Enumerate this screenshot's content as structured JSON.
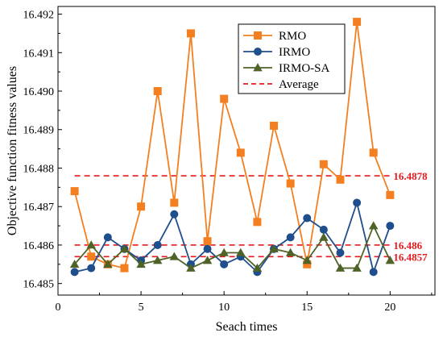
{
  "chart_data": {
    "type": "line",
    "title": "",
    "xlabel": "Seach times",
    "ylabel": "Objective function fitness values",
    "xlim": [
      0,
      22.7
    ],
    "ylim": [
      16.4847,
      16.4922
    ],
    "x_ticks": [
      0,
      5,
      10,
      15,
      20
    ],
    "y_ticks": [
      16.485,
      16.486,
      16.487,
      16.488,
      16.489,
      16.49,
      16.491,
      16.492
    ],
    "grid": false,
    "legend_position": "top-right",
    "x": [
      1,
      2,
      3,
      4,
      5,
      6,
      7,
      8,
      9,
      10,
      11,
      12,
      13,
      14,
      15,
      16,
      17,
      18,
      19,
      20
    ],
    "series": [
      {
        "name": "RMO",
        "color": "#F47F20",
        "marker": "square",
        "values": [
          16.4874,
          16.4857,
          16.4855,
          16.4854,
          16.487,
          16.49,
          16.4871,
          16.4915,
          16.4861,
          16.4898,
          16.4884,
          16.4866,
          16.4891,
          16.4876,
          16.4855,
          16.4881,
          16.4877,
          16.4918,
          16.4884,
          16.4873
        ]
      },
      {
        "name": "IRMO",
        "color": "#1F4E8C",
        "marker": "circle",
        "values": [
          16.4853,
          16.4854,
          16.4862,
          16.4859,
          16.4856,
          16.486,
          16.4868,
          16.4855,
          16.4859,
          16.4855,
          16.4857,
          16.4853,
          16.4859,
          16.4862,
          16.4867,
          16.4864,
          16.4858,
          16.4871,
          16.4853,
          16.4865
        ]
      },
      {
        "name": "IRMO-SA",
        "color": "#4F6228",
        "marker": "triangle",
        "values": [
          16.4855,
          16.486,
          16.4855,
          16.4859,
          16.4855,
          16.4856,
          16.4857,
          16.4854,
          16.4856,
          16.4858,
          16.4858,
          16.4854,
          16.4859,
          16.4858,
          16.4856,
          16.4862,
          16.4854,
          16.4854,
          16.4865,
          16.4856
        ]
      }
    ],
    "average": {
      "name": "Average",
      "color": "#E41A1C",
      "x_range": [
        1,
        20
      ],
      "lines": [
        {
          "value": 16.4878,
          "label": "16.4878"
        },
        {
          "value": 16.486,
          "label": "16.486"
        },
        {
          "value": 16.4857,
          "label": "16.4857"
        }
      ]
    }
  }
}
